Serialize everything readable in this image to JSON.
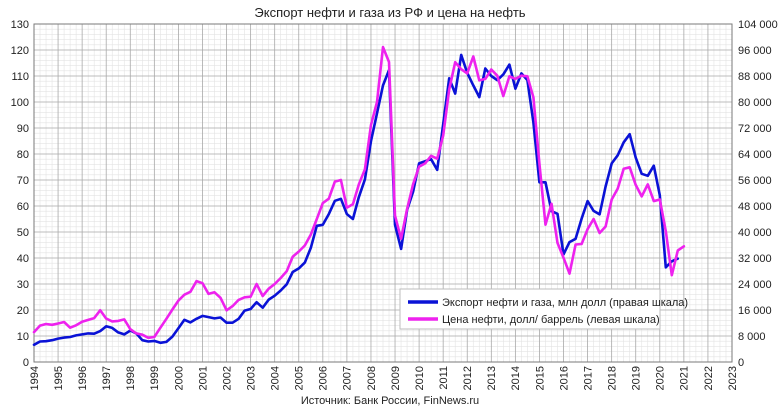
{
  "colors": {
    "export_series": "#0a12d6",
    "oil_series": "#ee22ee",
    "grid_minor": "#e3e3e3",
    "grid_major": "#a9a9a9",
    "axis_text": "#222222"
  },
  "chart_data": {
    "type": "line",
    "title": "Экспорт нефти и газа из РФ и цена на нефть",
    "source": "Источник: Банк России, FinNews.ru",
    "grid": true,
    "legend_position": "bottom-right",
    "x_axis": {
      "min": 1994,
      "max": 2023,
      "tick_labels": [
        "1994",
        "1995",
        "1996",
        "1997",
        "1998",
        "1999",
        "2000",
        "2001",
        "2002",
        "2003",
        "2004",
        "2005",
        "2006",
        "2007",
        "2008",
        "2009",
        "2010",
        "2011",
        "2012",
        "2013",
        "2014",
        "2015",
        "2016",
        "2017",
        "2018",
        "2019",
        "2020",
        "2021",
        "2022",
        "2023"
      ]
    },
    "y_left": {
      "min": 0,
      "max": 130,
      "tick_labels": [
        "0",
        "10",
        "20",
        "30",
        "40",
        "50",
        "60",
        "70",
        "80",
        "90",
        "100",
        "110",
        "120",
        "130"
      ]
    },
    "y_right": {
      "min": 0,
      "max": 104000,
      "tick_labels": [
        "0",
        "8 000",
        "16 000",
        "24 000",
        "32 000",
        "40 000",
        "48 000",
        "56 000",
        "64 000",
        "72 000",
        "80 000",
        "88 000",
        "96 000",
        "104 000"
      ]
    },
    "series": [
      {
        "name": "Экспорт нефти и газа, млн долл (правая шкала)",
        "axis": "right",
        "color_key": "export_series",
        "points": [
          [
            1994.0,
            5300
          ],
          [
            1994.25,
            6300
          ],
          [
            1994.5,
            6400
          ],
          [
            1994.75,
            6700
          ],
          [
            1995.0,
            7200
          ],
          [
            1995.25,
            7500
          ],
          [
            1995.5,
            7700
          ],
          [
            1995.75,
            8200
          ],
          [
            1996.0,
            8500
          ],
          [
            1996.25,
            8800
          ],
          [
            1996.5,
            8700
          ],
          [
            1996.75,
            9500
          ],
          [
            1997.0,
            11000
          ],
          [
            1997.25,
            10500
          ],
          [
            1997.5,
            9100
          ],
          [
            1997.75,
            8500
          ],
          [
            1998.0,
            9700
          ],
          [
            1998.25,
            8800
          ],
          [
            1998.5,
            6700
          ],
          [
            1998.75,
            6300
          ],
          [
            1999.0,
            6500
          ],
          [
            1999.25,
            5900
          ],
          [
            1999.5,
            6200
          ],
          [
            1999.75,
            7800
          ],
          [
            2000.0,
            10400
          ],
          [
            2000.25,
            13000
          ],
          [
            2000.5,
            12200
          ],
          [
            2000.75,
            13300
          ],
          [
            2001.0,
            14200
          ],
          [
            2001.25,
            13800
          ],
          [
            2001.5,
            13400
          ],
          [
            2001.75,
            13700
          ],
          [
            2002.0,
            12100
          ],
          [
            2002.25,
            12100
          ],
          [
            2002.5,
            13300
          ],
          [
            2002.75,
            15800
          ],
          [
            2003.0,
            16300
          ],
          [
            2003.25,
            18400
          ],
          [
            2003.5,
            16700
          ],
          [
            2003.75,
            19200
          ],
          [
            2004.0,
            20400
          ],
          [
            2004.25,
            22000
          ],
          [
            2004.5,
            23900
          ],
          [
            2004.75,
            27700
          ],
          [
            2005.0,
            28800
          ],
          [
            2005.25,
            30600
          ],
          [
            2005.5,
            35100
          ],
          [
            2005.75,
            41900
          ],
          [
            2006.0,
            42200
          ],
          [
            2006.25,
            45500
          ],
          [
            2006.5,
            49600
          ],
          [
            2006.75,
            50200
          ],
          [
            2007.0,
            45500
          ],
          [
            2007.25,
            44000
          ],
          [
            2007.5,
            50800
          ],
          [
            2007.75,
            56200
          ],
          [
            2008.0,
            68000
          ],
          [
            2008.25,
            76500
          ],
          [
            2008.5,
            85100
          ],
          [
            2008.75,
            89800
          ],
          [
            2009.0,
            42200
          ],
          [
            2009.25,
            34800
          ],
          [
            2009.5,
            46800
          ],
          [
            2009.75,
            52400
          ],
          [
            2010.0,
            61100
          ],
          [
            2010.25,
            61800
          ],
          [
            2010.5,
            62400
          ],
          [
            2010.75,
            59100
          ],
          [
            2011.0,
            73200
          ],
          [
            2011.25,
            87300
          ],
          [
            2011.5,
            82600
          ],
          [
            2011.75,
            94500
          ],
          [
            2012.0,
            89000
          ],
          [
            2012.25,
            85100
          ],
          [
            2012.5,
            81500
          ],
          [
            2012.75,
            90300
          ],
          [
            2013.0,
            88000
          ],
          [
            2013.25,
            86700
          ],
          [
            2013.5,
            88500
          ],
          [
            2013.75,
            91500
          ],
          [
            2014.0,
            84100
          ],
          [
            2014.25,
            88800
          ],
          [
            2014.5,
            86700
          ],
          [
            2014.75,
            73700
          ],
          [
            2015.0,
            55300
          ],
          [
            2015.25,
            55300
          ],
          [
            2015.5,
            46400
          ],
          [
            2015.75,
            45600
          ],
          [
            2016.0,
            33100
          ],
          [
            2016.25,
            36900
          ],
          [
            2016.5,
            37900
          ],
          [
            2016.75,
            44100
          ],
          [
            2017.0,
            49500
          ],
          [
            2017.25,
            46500
          ],
          [
            2017.5,
            45400
          ],
          [
            2017.75,
            54000
          ],
          [
            2018.0,
            61100
          ],
          [
            2018.25,
            63600
          ],
          [
            2018.5,
            67600
          ],
          [
            2018.75,
            70100
          ],
          [
            2019.0,
            62900
          ],
          [
            2019.25,
            57900
          ],
          [
            2019.5,
            57300
          ],
          [
            2019.75,
            60400
          ],
          [
            2020.0,
            51300
          ],
          [
            2020.25,
            29100
          ],
          [
            2020.5,
            31000
          ],
          [
            2020.75,
            31800
          ]
        ]
      },
      {
        "name": "Цена нефти, долл/ баррель (левая шкала)",
        "axis": "left",
        "color_key": "oil_series",
        "points": [
          [
            1994.0,
            11.5
          ],
          [
            1994.25,
            14.0
          ],
          [
            1994.5,
            14.6
          ],
          [
            1994.75,
            14.3
          ],
          [
            1995.0,
            14.8
          ],
          [
            1995.25,
            15.4
          ],
          [
            1995.5,
            13.2
          ],
          [
            1995.75,
            14.1
          ],
          [
            1996.0,
            15.5
          ],
          [
            1996.25,
            16.2
          ],
          [
            1996.5,
            16.9
          ],
          [
            1996.75,
            19.9
          ],
          [
            1997.0,
            16.7
          ],
          [
            1997.25,
            15.6
          ],
          [
            1997.5,
            15.8
          ],
          [
            1997.75,
            16.4
          ],
          [
            1998.0,
            12.6
          ],
          [
            1998.25,
            11.0
          ],
          [
            1998.5,
            10.5
          ],
          [
            1998.75,
            9.3
          ],
          [
            1999.0,
            9.6
          ],
          [
            1999.25,
            13.2
          ],
          [
            1999.5,
            16.6
          ],
          [
            1999.75,
            20.2
          ],
          [
            2000.0,
            23.6
          ],
          [
            2000.25,
            25.9
          ],
          [
            2000.5,
            27.0
          ],
          [
            2000.75,
            31.1
          ],
          [
            2001.0,
            30.3
          ],
          [
            2001.25,
            26.2
          ],
          [
            2001.5,
            26.8
          ],
          [
            2001.75,
            24.7
          ],
          [
            2002.0,
            19.9
          ],
          [
            2002.25,
            21.5
          ],
          [
            2002.5,
            23.9
          ],
          [
            2002.75,
            24.9
          ],
          [
            2003.0,
            25.1
          ],
          [
            2003.25,
            30.0
          ],
          [
            2003.5,
            25.4
          ],
          [
            2003.75,
            28.2
          ],
          [
            2004.0,
            30.0
          ],
          [
            2004.25,
            32.3
          ],
          [
            2004.5,
            34.9
          ],
          [
            2004.75,
            40.5
          ],
          [
            2005.0,
            42.5
          ],
          [
            2005.25,
            44.8
          ],
          [
            2005.5,
            49.0
          ],
          [
            2005.75,
            55.0
          ],
          [
            2006.0,
            61.1
          ],
          [
            2006.25,
            62.8
          ],
          [
            2006.5,
            69.4
          ],
          [
            2006.75,
            70.0
          ],
          [
            2007.0,
            59.4
          ],
          [
            2007.25,
            60.7
          ],
          [
            2007.5,
            68.4
          ],
          [
            2007.75,
            74.1
          ],
          [
            2008.0,
            91.2
          ],
          [
            2008.25,
            100.0
          ],
          [
            2008.5,
            121.1
          ],
          [
            2008.75,
            115.4
          ],
          [
            2009.0,
            56.3
          ],
          [
            2009.25,
            47.4
          ],
          [
            2009.5,
            58.9
          ],
          [
            2009.75,
            68.4
          ],
          [
            2010.0,
            75.1
          ],
          [
            2010.25,
            76.4
          ],
          [
            2010.5,
            79.3
          ],
          [
            2010.75,
            78.2
          ],
          [
            2011.0,
            87.1
          ],
          [
            2011.25,
            104.9
          ],
          [
            2011.5,
            115.3
          ],
          [
            2011.75,
            112.6
          ],
          [
            2012.0,
            111.0
          ],
          [
            2012.25,
            117.5
          ],
          [
            2012.5,
            108.3
          ],
          [
            2012.75,
            108.9
          ],
          [
            2013.0,
            112.5
          ],
          [
            2013.25,
            110.1
          ],
          [
            2013.5,
            102.3
          ],
          [
            2013.75,
            109.9
          ],
          [
            2014.0,
            108.9
          ],
          [
            2014.25,
            110.1
          ],
          [
            2014.5,
            109.9
          ],
          [
            2014.75,
            101.8
          ],
          [
            2015.0,
            76.3
          ],
          [
            2015.25,
            52.8
          ],
          [
            2015.5,
            60.9
          ],
          [
            2015.75,
            45.8
          ],
          [
            2016.0,
            40.1
          ],
          [
            2016.25,
            34.0
          ],
          [
            2016.5,
            45.2
          ],
          [
            2016.75,
            45.4
          ],
          [
            2017.0,
            51.1
          ],
          [
            2017.25,
            55.0
          ],
          [
            2017.5,
            49.6
          ],
          [
            2017.75,
            52.1
          ],
          [
            2018.0,
            62.5
          ],
          [
            2018.25,
            66.7
          ],
          [
            2018.5,
            74.3
          ],
          [
            2018.75,
            74.9
          ],
          [
            2019.0,
            68.1
          ],
          [
            2019.25,
            63.7
          ],
          [
            2019.5,
            68.3
          ],
          [
            2019.75,
            61.9
          ],
          [
            2020.0,
            62.5
          ],
          [
            2020.25,
            50.3
          ],
          [
            2020.5,
            33.4
          ],
          [
            2020.75,
            42.9
          ],
          [
            2021.0,
            44.5
          ]
        ]
      }
    ]
  }
}
